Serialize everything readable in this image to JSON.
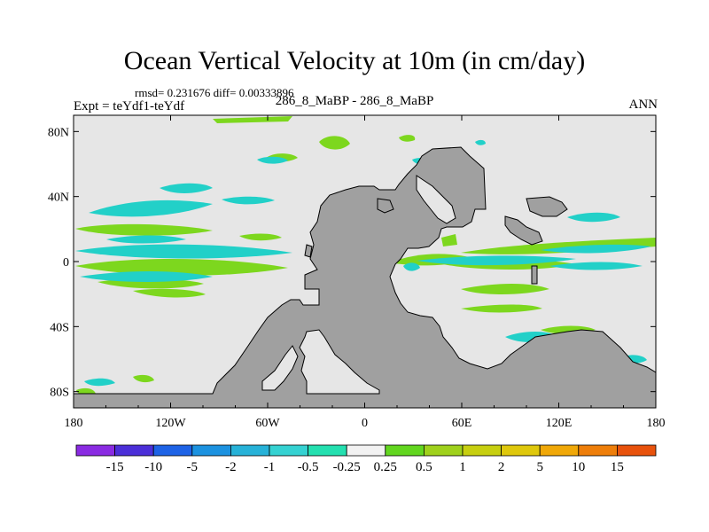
{
  "title": "Ocean Vertical Velocity at 10m (in cm/day)",
  "stats_line": "rmsd= 0.231676 diff= 0.00333896",
  "subtitle": "286_8_MaBP - 286_8_MaBP",
  "experiment": "Expt = teYdf1-teYdf",
  "season": "ANN",
  "map": {
    "lon_ticks": [
      "180",
      "120W",
      "60W",
      "0",
      "60E",
      "120E",
      "180"
    ],
    "lat_ticks": [
      "80N",
      "40N",
      "0",
      "40S",
      "80S"
    ]
  },
  "colorbar": {
    "colors": [
      "#8a2be2",
      "#4b2fd8",
      "#1e63e6",
      "#1c92e0",
      "#27b2d8",
      "#35d2d2",
      "#24e0b0",
      "#f2f2f2",
      "#62d61f",
      "#9fd11c",
      "#c7cf10",
      "#dfc80c",
      "#f0a808",
      "#ee7e0a",
      "#e8520c"
    ],
    "labels": [
      "-15",
      "-10",
      "-5",
      "-2",
      "-1",
      "-0.5",
      "-0.25",
      "0.25",
      "0.5",
      "1",
      "2",
      "5",
      "10",
      "15"
    ]
  },
  "colors": {
    "ocean_background": "#e6e6e6",
    "land": "#a0a0a0",
    "upwelling": "#7dd71e",
    "downwelling": "#22d0c8"
  }
}
